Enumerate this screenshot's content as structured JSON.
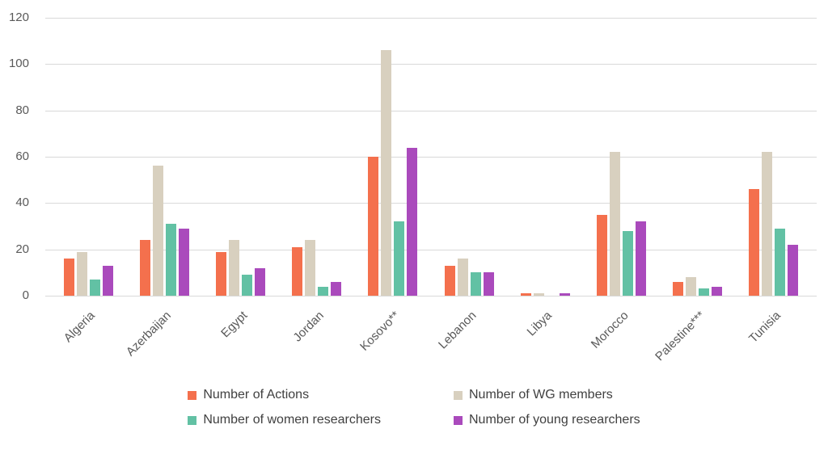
{
  "chart_data": {
    "type": "bar",
    "title": "",
    "xlabel": "",
    "ylabel": "",
    "ylim": [
      0,
      120
    ],
    "yticks": [
      0,
      20,
      40,
      60,
      80,
      100,
      120
    ],
    "grid": true,
    "legend_position": "bottom",
    "categories": [
      "Algeria",
      "Azerbaijan",
      "Egypt",
      "Jordan",
      "Kosovo**",
      "Lebanon",
      "Libya",
      "Morocco",
      "Palestine***",
      "Tunisia"
    ],
    "series": [
      {
        "name": "Number of Actions",
        "color": "#f4704d",
        "values": [
          16,
          24,
          19,
          21,
          60,
          13,
          1,
          35,
          6,
          46
        ]
      },
      {
        "name": "Number of WG members",
        "color": "#d8d0bf",
        "values": [
          19,
          56,
          24,
          24,
          106,
          16,
          1,
          62,
          8,
          62
        ]
      },
      {
        "name": "Number of women researchers",
        "color": "#62c1a4",
        "values": [
          7,
          31,
          9,
          4,
          32,
          10,
          0,
          28,
          3,
          29
        ]
      },
      {
        "name": "Number of young researchers",
        "color": "#aa4abc",
        "values": [
          13,
          29,
          12,
          6,
          64,
          10,
          1,
          32,
          4,
          22
        ]
      }
    ],
    "colors": {
      "gridline": "#d9d9d9",
      "axis_text": "#595959",
      "legend_text": "#404040",
      "background": "#ffffff"
    }
  }
}
